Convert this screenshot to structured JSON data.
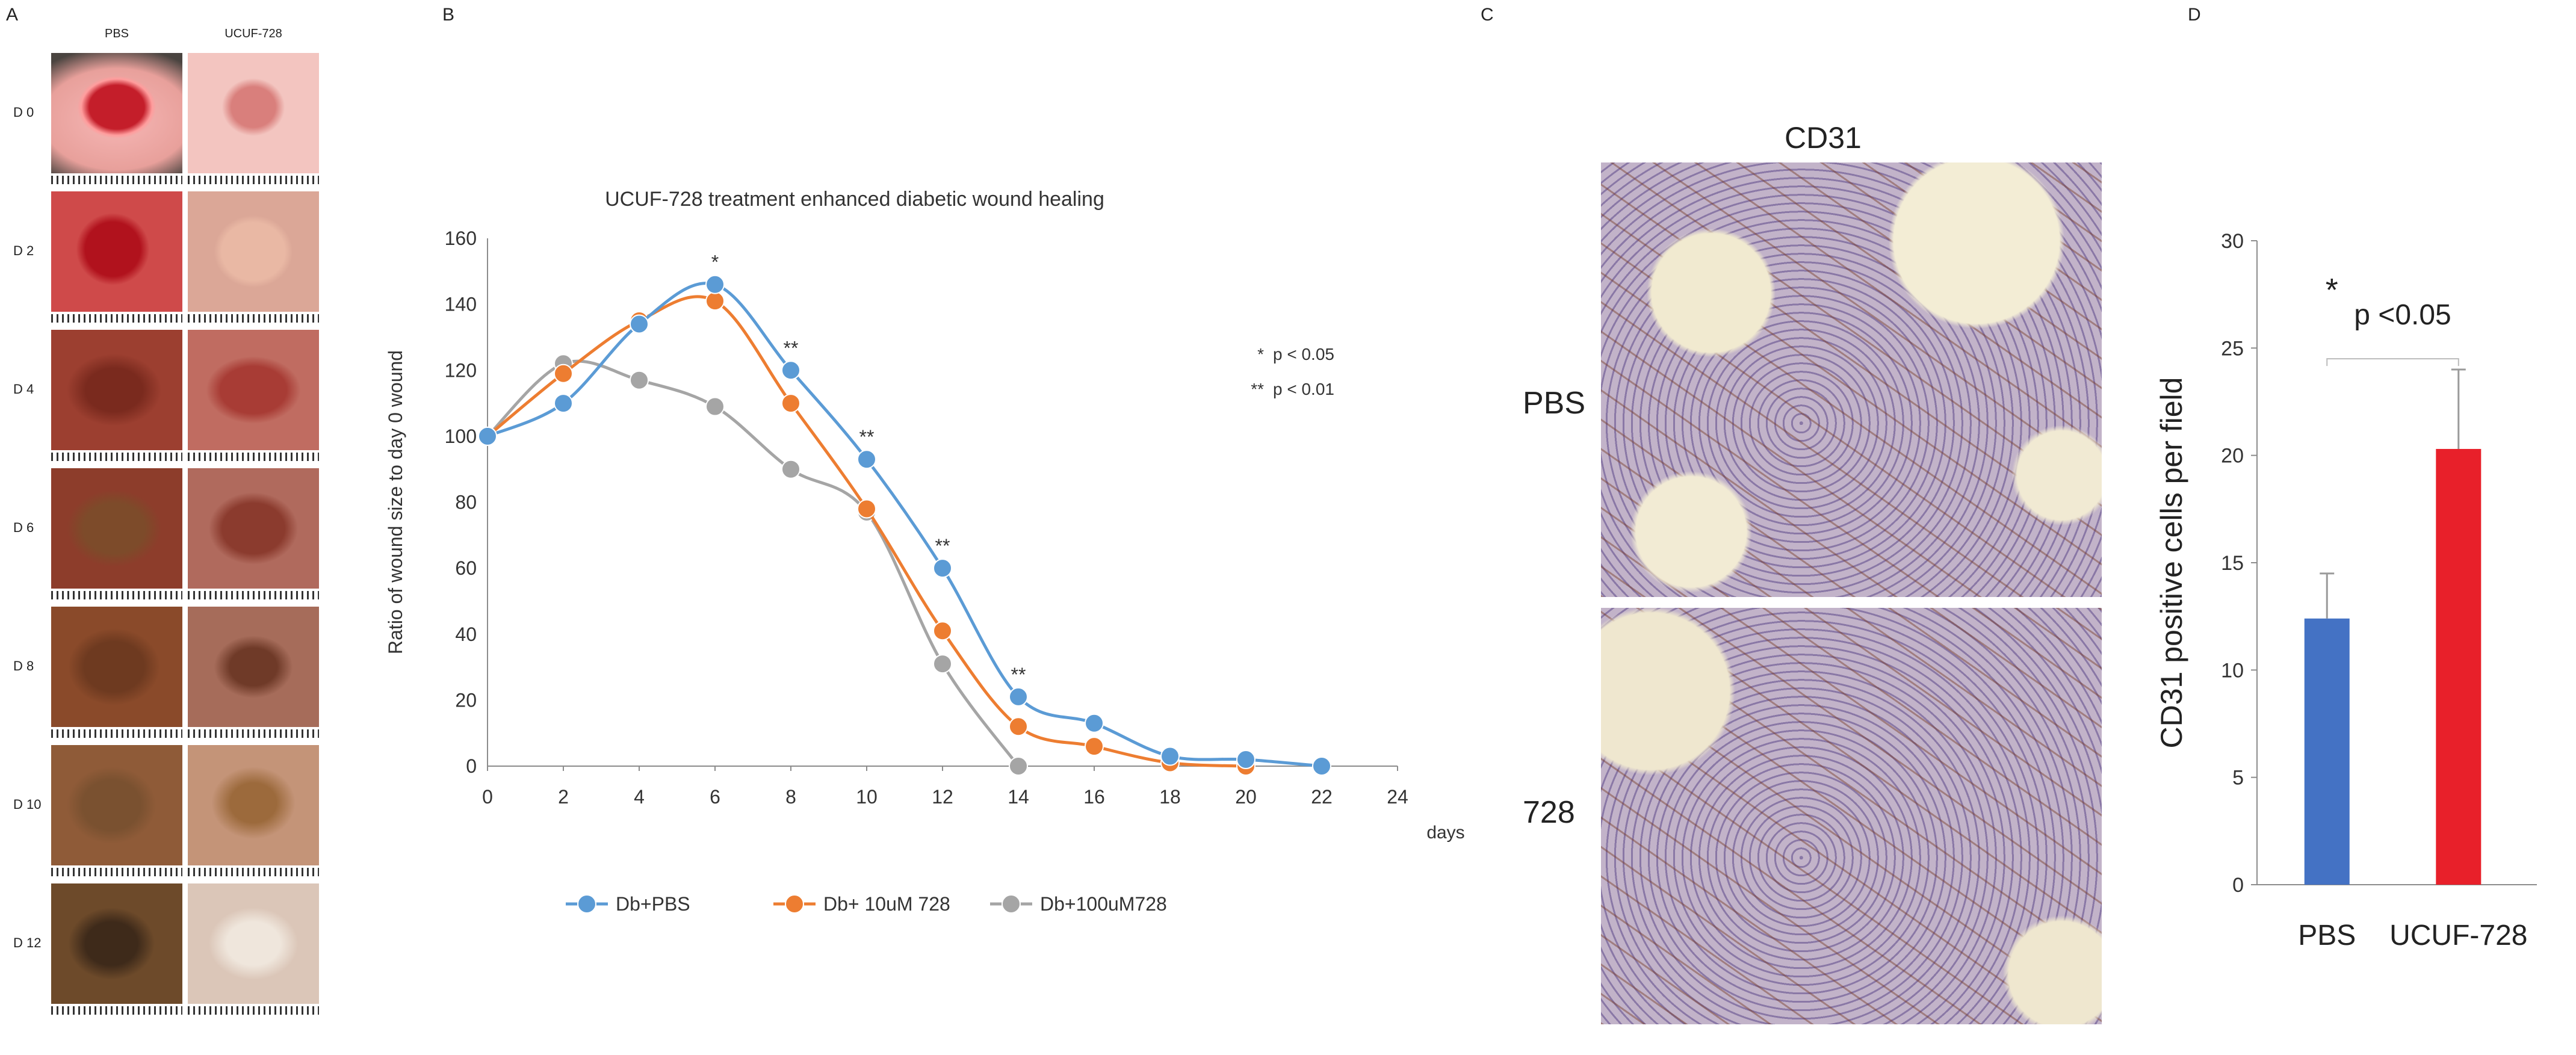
{
  "panels": {
    "a": {
      "letter": "A",
      "columns": [
        "PBS",
        "UCUF-728"
      ],
      "rows": [
        "D 0",
        "D 2",
        "D 4",
        "D 6",
        "D 8",
        "D 10",
        "D 12"
      ]
    },
    "b": {
      "letter": "B"
    },
    "c": {
      "letter": "C",
      "title": "CD31",
      "rows": [
        "PBS",
        "728"
      ]
    },
    "d": {
      "letter": "D"
    }
  },
  "chart_data": [
    {
      "type": "line",
      "title": "UCUF-728 treatment enhanced diabetic wound healing",
      "xlabel": "days",
      "ylabel": "Ratio of wound size to day 0 wound",
      "xlim": [
        0,
        24
      ],
      "ylim": [
        0,
        160
      ],
      "xticks": [
        0,
        2,
        4,
        6,
        8,
        10,
        12,
        14,
        16,
        18,
        20,
        22,
        24
      ],
      "yticks": [
        0,
        20,
        40,
        60,
        80,
        100,
        120,
        140,
        160
      ],
      "grid": false,
      "legend": "bottom",
      "series": [
        {
          "name": "Db+PBS",
          "color": "#5b9bd5",
          "x": [
            0,
            2,
            4,
            6,
            8,
            10,
            12,
            14,
            16,
            18,
            20,
            22
          ],
          "values": [
            100,
            110,
            134,
            146,
            120,
            93,
            60,
            21,
            13,
            3,
            2,
            0
          ]
        },
        {
          "name": "Db+ 10uM 728",
          "color": "#ed7d31",
          "x": [
            0,
            2,
            4,
            6,
            8,
            10,
            12,
            14,
            16,
            18,
            20
          ],
          "values": [
            100,
            119,
            135,
            141,
            110,
            78,
            41,
            12,
            6,
            1,
            0
          ]
        },
        {
          "name": "Db+100uM728",
          "color": "#a5a5a5",
          "x": [
            0,
            2,
            4,
            6,
            8,
            10,
            12,
            14
          ],
          "values": [
            100,
            122,
            117,
            109,
            90,
            77,
            31,
            0
          ]
        }
      ],
      "annotations": [
        {
          "x": 6,
          "text": "*"
        },
        {
          "x": 8,
          "text": "**"
        },
        {
          "x": 10,
          "text": "**"
        },
        {
          "x": 12,
          "text": "**"
        },
        {
          "x": 14,
          "text": "**"
        }
      ],
      "significance_key": [
        {
          "mark": "*",
          "text": "p < 0.05"
        },
        {
          "mark": "**",
          "text": "p < 0.01"
        }
      ]
    },
    {
      "type": "bar",
      "categories": [
        "PBS",
        "UCUF-728"
      ],
      "values": [
        12.4,
        20.3
      ],
      "errors": [
        2.1,
        3.7
      ],
      "colors": [
        "#4472c4",
        "#e8202a"
      ],
      "ylabel": "CD31 positive cells per field",
      "ylim": [
        0,
        30
      ],
      "yticks": [
        0,
        5,
        10,
        15,
        20,
        25,
        30
      ],
      "significance": {
        "mark": "*",
        "text": "p <0.05"
      }
    }
  ]
}
